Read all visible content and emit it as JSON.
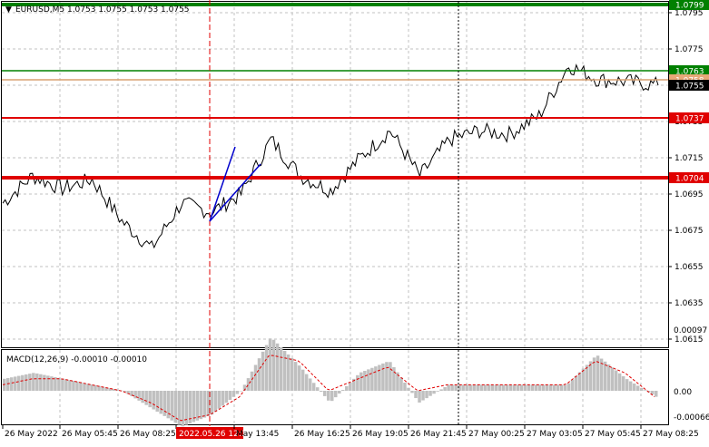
{
  "header": {
    "menu_arrow": "▼",
    "symbol_info": "EURUSD,M5  1.0753 1.0755 1.0753 1.0755"
  },
  "price_scale": {
    "ticks": [
      "1.0795",
      "1.0775",
      "1.0755",
      "1.0735",
      "1.0715",
      "1.0695",
      "1.0675",
      "1.0655",
      "1.0635",
      "1.0615"
    ]
  },
  "levels": [
    {
      "label": "1.0799",
      "color": "#008000",
      "badge": "green"
    },
    {
      "label": "1.0763",
      "color": "#008000",
      "badge": "green"
    },
    {
      "label": "1.0758",
      "color": "#d8a070",
      "badge": "orange"
    },
    {
      "label": "1.0755",
      "color": "#000000",
      "badge": "black"
    },
    {
      "label": "1.0737",
      "color": "#e00000",
      "badge": "red"
    },
    {
      "label": "1.0704",
      "color": "#e00000",
      "badge": "red"
    }
  ],
  "time_axis": {
    "labels": [
      "26 May 2022",
      "26 May 05:45",
      "26 May 08:25",
      "2022.05.26 12:35",
      "May 13:45",
      "26 May 16:25",
      "26 May 19:05",
      "26 May 21:45",
      "27 May 00:25",
      "27 May 03:05",
      "27 May 05:45",
      "27 May 08:25"
    ],
    "highlight_index": 3,
    "highlight_color": "#e00000"
  },
  "macd": {
    "title": "MACD(12,26,9) -0.00010 -0.00010",
    "scale_ticks": [
      "0.00097",
      "0.00",
      "-0.00066"
    ]
  },
  "colors": {
    "price_line": "#000000",
    "grid": "#c0c0c0",
    "trend_lines": "#0000cc",
    "histogram": "#c0c0c0",
    "signal_line": "#e00000",
    "vertical_marker": "#e00000"
  },
  "chart_data": {
    "type": "line",
    "title": "EURUSD,M5",
    "y_range": [
      1.0605,
      1.08
    ],
    "price_series": {
      "x": [
        "26 May 00:00",
        "26 May 02:00",
        "26 May 04:00",
        "26 May 06:00",
        "26 May 07:30",
        "26 May 09:00",
        "26 May 10:00",
        "26 May 11:00",
        "26 May 12:35",
        "26 May 13:30",
        "26 May 14:30",
        "26 May 15:30",
        "26 May 16:30",
        "26 May 18:00",
        "26 May 19:00",
        "26 May 20:30",
        "26 May 22:00",
        "27 May 00:00",
        "27 May 02:00",
        "27 May 03:05",
        "27 May 04:30",
        "27 May 06:00",
        "27 May 08:25"
      ],
      "y": [
        1.069,
        1.0705,
        1.0698,
        1.0703,
        1.068,
        1.0665,
        1.069,
        1.0685,
        1.0695,
        1.0725,
        1.0705,
        1.0697,
        1.0715,
        1.073,
        1.0705,
        1.0725,
        1.073,
        1.0728,
        1.0738,
        1.0766,
        1.0758,
        1.0757,
        1.0755
      ]
    },
    "macd": {
      "histogram_range": [
        -0.00066,
        0.00097
      ],
      "histogram": [
        0.0002,
        0.0003,
        0.0002,
        0.0001,
        0.0,
        -0.0003,
        -0.0006,
        -0.0004,
        0.0,
        0.0009,
        0.0004,
        -0.0002,
        0.0003,
        0.0005,
        -0.0002,
        0.0001,
        0.0001,
        0.0001,
        0.0001,
        0.0001,
        0.0006,
        0.0002,
        -0.0001
      ],
      "signal": [
        0.0001,
        0.0002,
        0.0002,
        0.0001,
        0.0,
        -0.0002,
        -0.0005,
        -0.0004,
        -0.0001,
        0.0006,
        0.0005,
        0.0,
        0.0002,
        0.0004,
        0.0,
        0.0001,
        0.0001,
        0.0001,
        0.0001,
        0.0001,
        0.0005,
        0.0003,
        -0.0001
      ]
    }
  }
}
